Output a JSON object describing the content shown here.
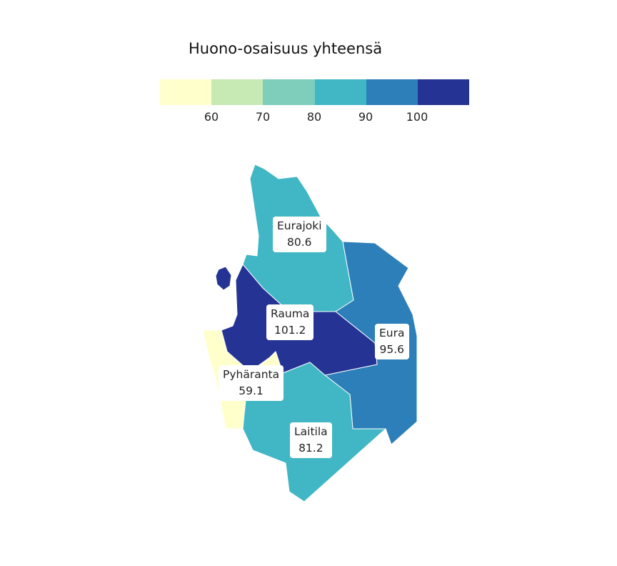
{
  "title": "Huono-osaisuus yhteensä",
  "legend": {
    "colors": [
      "#ffffcc",
      "#c7e9b4",
      "#7fcdbb",
      "#41b6c4",
      "#2c7fb8",
      "#253494"
    ],
    "ticks": [
      "60",
      "70",
      "80",
      "90",
      "100"
    ]
  },
  "regions": [
    {
      "name": "Eurajoki",
      "value": "80.6",
      "color": "#41b6c4"
    },
    {
      "name": "Rauma",
      "value": "101.2",
      "color": "#253494"
    },
    {
      "name": "Eura",
      "value": "95.6",
      "color": "#2c7fb8"
    },
    {
      "name": "Pyhäranta",
      "value": "59.1",
      "color": "#ffffcc"
    },
    {
      "name": "Laitila",
      "value": "81.2",
      "color": "#41b6c4"
    }
  ]
}
